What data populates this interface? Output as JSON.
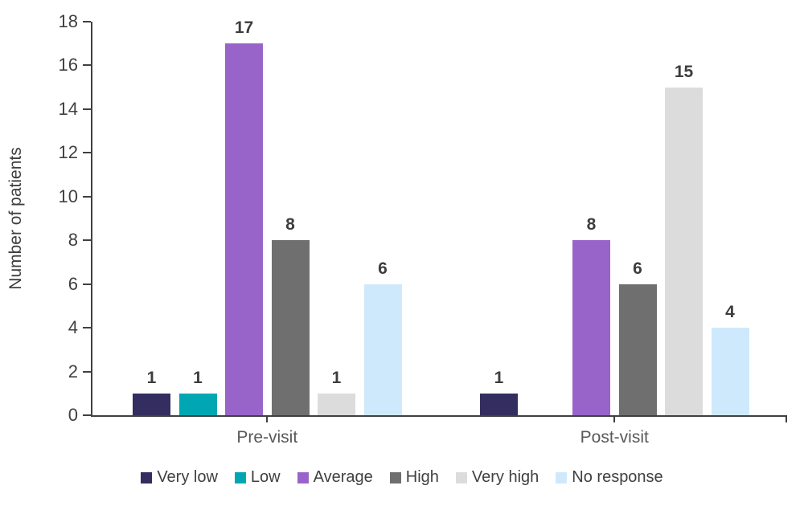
{
  "chart_data": {
    "type": "bar",
    "title": "",
    "xlabel": "",
    "ylabel": "Number of patients",
    "categories": [
      "Pre-visit",
      "Post-visit"
    ],
    "series": [
      {
        "name": "Very low",
        "color": "#332e5f",
        "values": [
          1,
          1
        ]
      },
      {
        "name": "Low",
        "color": "#00a7b2",
        "values": [
          1,
          0
        ]
      },
      {
        "name": "Average",
        "color": "#9964ca",
        "values": [
          17,
          8
        ]
      },
      {
        "name": "High",
        "color": "#6f6f6f",
        "values": [
          8,
          6
        ]
      },
      {
        "name": "Very high",
        "color": "#dcdcdc",
        "values": [
          1,
          15
        ]
      },
      {
        "name": "No response",
        "color": "#cfe9fc",
        "values": [
          6,
          4
        ]
      }
    ],
    "ylim": [
      0,
      18
    ],
    "ytick_step": 2,
    "grid": false,
    "legend_position": "bottom",
    "value_labels_shown": true,
    "zero_value_bars_hidden": true
  },
  "style": {
    "axis_color": "#404040",
    "tick_label_color": "#404040",
    "category_label_color": "#595959",
    "value_label_color": "#3d3d3d",
    "legend_text_color": "#404040",
    "background": "#ffffff"
  }
}
